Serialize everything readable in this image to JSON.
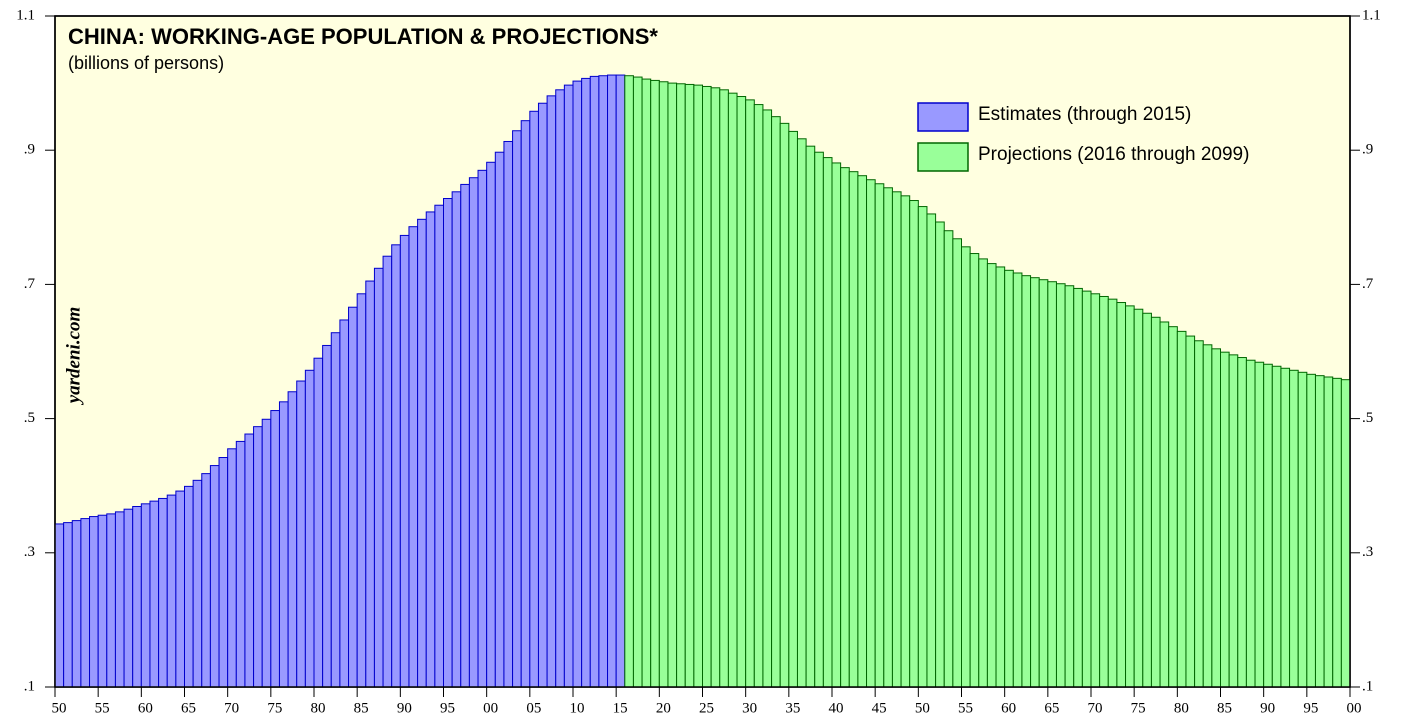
{
  "chart_data": {
    "type": "bar",
    "title": "CHINA: WORKING-AGE POPULATION & PROJECTIONS*",
    "subtitle": "(billions of persons)",
    "watermark": "yardeni.com",
    "legend": "top-right",
    "plot_background": "#ffffe0",
    "xlim": [
      1950,
      2100
    ],
    "ylim": [
      0.1,
      1.1
    ],
    "yticks": [
      {
        "value": 0.1,
        "label": ".1"
      },
      {
        "value": 0.3,
        "label": ".3"
      },
      {
        "value": 0.5,
        "label": ".5"
      },
      {
        "value": 0.7,
        "label": ".7"
      },
      {
        "value": 0.9,
        "label": ".9"
      },
      1.1
    ],
    "xticks": [
      {
        "value": 1950,
        "label": "50"
      },
      {
        "value": 1955,
        "label": "55"
      },
      {
        "value": 1960,
        "label": "60"
      },
      {
        "value": 1965,
        "label": "65"
      },
      {
        "value": 1970,
        "label": "70"
      },
      {
        "value": 1975,
        "label": "75"
      },
      {
        "value": 1980,
        "label": "80"
      },
      {
        "value": 1985,
        "label": "85"
      },
      {
        "value": 1990,
        "label": "90"
      },
      {
        "value": 1995,
        "label": "95"
      },
      {
        "value": 2000,
        "label": "00"
      },
      {
        "value": 2005,
        "label": "05"
      },
      {
        "value": 2010,
        "label": "10"
      },
      {
        "value": 2015,
        "label": "15"
      },
      {
        "value": 2020,
        "label": "20"
      },
      {
        "value": 2025,
        "label": "25"
      },
      {
        "value": 2030,
        "label": "30"
      },
      {
        "value": 2035,
        "label": "35"
      },
      {
        "value": 2040,
        "label": "40"
      },
      {
        "value": 2045,
        "label": "45"
      },
      {
        "value": 2050,
        "label": "50"
      },
      {
        "value": 2055,
        "label": "55"
      },
      {
        "value": 2060,
        "label": "60"
      },
      {
        "value": 2065,
        "label": "65"
      },
      {
        "value": 2070,
        "label": "70"
      },
      {
        "value": 2075,
        "label": "75"
      },
      {
        "value": 2080,
        "label": "80"
      },
      {
        "value": 2085,
        "label": "85"
      },
      {
        "value": 2090,
        "label": "90"
      },
      {
        "value": 2095,
        "label": "95"
      },
      {
        "value": 2100,
        "label": "00"
      }
    ],
    "series": [
      {
        "name": "Estimates (through 2015)",
        "color": "#9999ff",
        "edge": "#0000cc",
        "x": [
          1950,
          1951,
          1952,
          1953,
          1954,
          1955,
          1956,
          1957,
          1958,
          1959,
          1960,
          1961,
          1962,
          1963,
          1964,
          1965,
          1966,
          1967,
          1968,
          1969,
          1970,
          1971,
          1972,
          1973,
          1974,
          1975,
          1976,
          1977,
          1978,
          1979,
          1980,
          1981,
          1982,
          1983,
          1984,
          1985,
          1986,
          1987,
          1988,
          1989,
          1990,
          1991,
          1992,
          1993,
          1994,
          1995,
          1996,
          1997,
          1998,
          1999,
          2000,
          2001,
          2002,
          2003,
          2004,
          2005,
          2006,
          2007,
          2008,
          2009,
          2010,
          2011,
          2012,
          2013,
          2014,
          2015
        ],
        "values": [
          0.343,
          0.345,
          0.348,
          0.351,
          0.354,
          0.356,
          0.358,
          0.361,
          0.365,
          0.369,
          0.373,
          0.377,
          0.381,
          0.386,
          0.392,
          0.399,
          0.408,
          0.418,
          0.43,
          0.442,
          0.455,
          0.466,
          0.477,
          0.488,
          0.499,
          0.512,
          0.525,
          0.54,
          0.556,
          0.572,
          0.59,
          0.609,
          0.628,
          0.647,
          0.666,
          0.686,
          0.705,
          0.724,
          0.742,
          0.759,
          0.773,
          0.786,
          0.797,
          0.808,
          0.818,
          0.828,
          0.838,
          0.849,
          0.859,
          0.87,
          0.882,
          0.897,
          0.913,
          0.929,
          0.944,
          0.958,
          0.97,
          0.981,
          0.99,
          0.997,
          1.003,
          1.007,
          1.01,
          1.011,
          1.012,
          1.012
        ]
      },
      {
        "name": "Projections (2016 through 2099)",
        "color": "#99ff99",
        "edge": "#006600",
        "x": [
          2016,
          2017,
          2018,
          2019,
          2020,
          2021,
          2022,
          2023,
          2024,
          2025,
          2026,
          2027,
          2028,
          2029,
          2030,
          2031,
          2032,
          2033,
          2034,
          2035,
          2036,
          2037,
          2038,
          2039,
          2040,
          2041,
          2042,
          2043,
          2044,
          2045,
          2046,
          2047,
          2048,
          2049,
          2050,
          2051,
          2052,
          2053,
          2054,
          2055,
          2056,
          2057,
          2058,
          2059,
          2060,
          2061,
          2062,
          2063,
          2064,
          2065,
          2066,
          2067,
          2068,
          2069,
          2070,
          2071,
          2072,
          2073,
          2074,
          2075,
          2076,
          2077,
          2078,
          2079,
          2080,
          2081,
          2082,
          2083,
          2084,
          2085,
          2086,
          2087,
          2088,
          2089,
          2090,
          2091,
          2092,
          2093,
          2094,
          2095,
          2096,
          2097,
          2098,
          2099
        ],
        "values": [
          1.011,
          1.009,
          1.006,
          1.004,
          1.002,
          1.0,
          0.999,
          0.998,
          0.997,
          0.995,
          0.993,
          0.99,
          0.985,
          0.98,
          0.975,
          0.968,
          0.96,
          0.95,
          0.94,
          0.928,
          0.917,
          0.906,
          0.897,
          0.889,
          0.881,
          0.874,
          0.868,
          0.862,
          0.856,
          0.85,
          0.844,
          0.838,
          0.832,
          0.825,
          0.816,
          0.805,
          0.793,
          0.78,
          0.768,
          0.756,
          0.746,
          0.738,
          0.731,
          0.726,
          0.721,
          0.717,
          0.713,
          0.71,
          0.707,
          0.704,
          0.701,
          0.698,
          0.694,
          0.69,
          0.686,
          0.682,
          0.678,
          0.673,
          0.668,
          0.663,
          0.657,
          0.651,
          0.644,
          0.637,
          0.63,
          0.623,
          0.616,
          0.61,
          0.604,
          0.599,
          0.595,
          0.591,
          0.587,
          0.584,
          0.581,
          0.578,
          0.575,
          0.572,
          0.569,
          0.566,
          0.564,
          0.562,
          0.56,
          0.558
        ]
      }
    ]
  }
}
